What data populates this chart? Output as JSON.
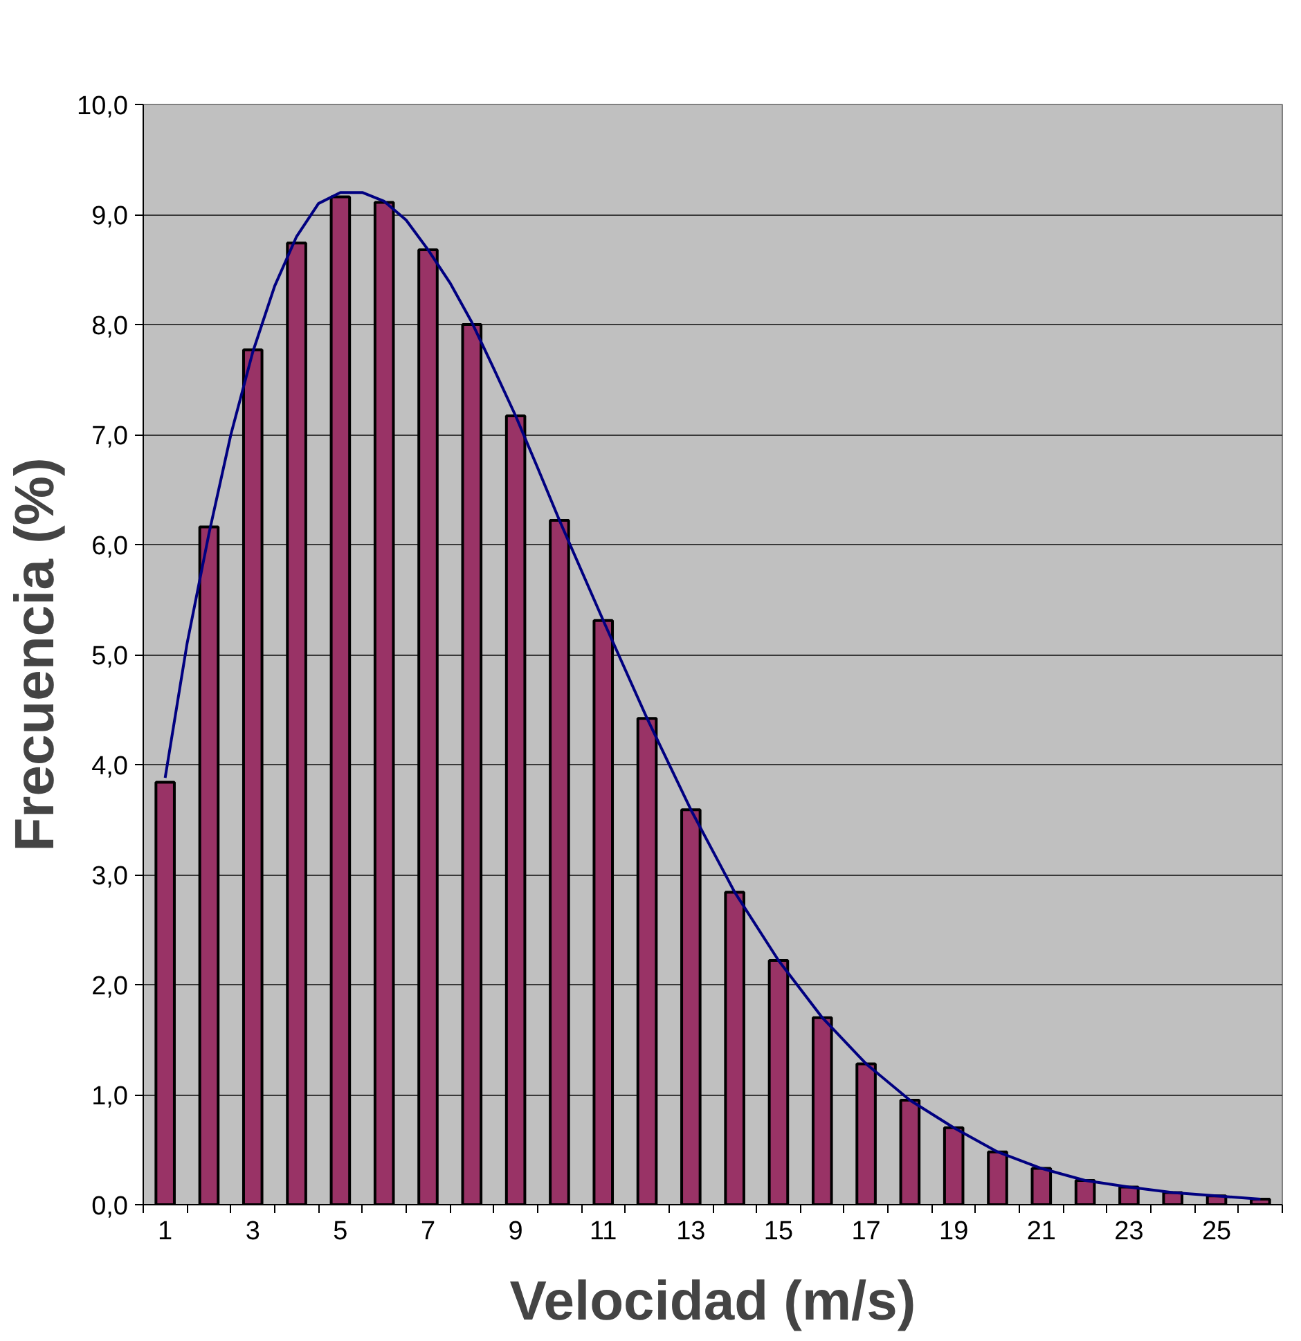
{
  "chart_data": {
    "type": "bar",
    "xlabel": "Velocidad (m/s)",
    "ylabel": "Frecuencia (%)",
    "x": [
      1,
      2,
      3,
      4,
      5,
      6,
      7,
      8,
      9,
      10,
      11,
      12,
      13,
      14,
      15,
      16,
      17,
      18,
      19,
      20,
      21,
      22,
      23,
      24,
      25,
      26
    ],
    "xlim": [
      0.5,
      26.5
    ],
    "xticks": [
      1,
      3,
      5,
      7,
      9,
      11,
      13,
      15,
      17,
      19,
      21,
      23,
      25
    ],
    "series": [
      {
        "color": "#993366",
        "values": [
          3.84,
          6.16,
          7.77,
          8.74,
          9.16,
          9.11,
          8.68,
          8.0,
          7.17,
          6.22,
          5.31,
          4.42,
          3.59,
          2.84,
          2.22,
          1.7,
          1.28,
          0.95,
          0.7,
          0.48,
          0.33,
          0.22,
          0.16,
          0.11,
          0.08,
          0.05
        ]
      },
      {
        "type": "line",
        "color": "#000080",
        "x": [
          1,
          1.5,
          2,
          2.5,
          3,
          3.5,
          4,
          4.5,
          5,
          5.5,
          6,
          6.5,
          7,
          7.5,
          8,
          8.5,
          9,
          9.5,
          10,
          11,
          12,
          13,
          14,
          15,
          16,
          17,
          18,
          19,
          20,
          21,
          22,
          23,
          24,
          25,
          26
        ],
        "values": [
          3.88,
          5.1,
          6.1,
          7.0,
          7.75,
          8.35,
          8.8,
          9.1,
          9.2,
          9.2,
          9.12,
          8.95,
          8.68,
          8.38,
          8.02,
          7.6,
          7.17,
          6.7,
          6.22,
          5.31,
          4.42,
          3.59,
          2.84,
          2.22,
          1.7,
          1.28,
          0.95,
          0.7,
          0.48,
          0.33,
          0.22,
          0.16,
          0.11,
          0.08,
          0.05
        ]
      }
    ],
    "ylim": [
      0,
      10
    ],
    "yticks": [
      {
        "value": 0,
        "label": "0,0"
      },
      {
        "value": 1,
        "label": "1,0"
      },
      {
        "value": 2,
        "label": "2,0"
      },
      {
        "value": 3,
        "label": "3,0"
      },
      {
        "value": 4,
        "label": "4,0"
      },
      {
        "value": 5,
        "label": "5,0"
      },
      {
        "value": 6,
        "label": "6,0"
      },
      {
        "value": 7,
        "label": "7,0"
      },
      {
        "value": 8,
        "label": "8,0"
      },
      {
        "value": 9,
        "label": "9,0"
      },
      {
        "value": 10,
        "label": "10,0"
      }
    ],
    "grid": "y",
    "marker": "none",
    "line_style": "solid"
  }
}
